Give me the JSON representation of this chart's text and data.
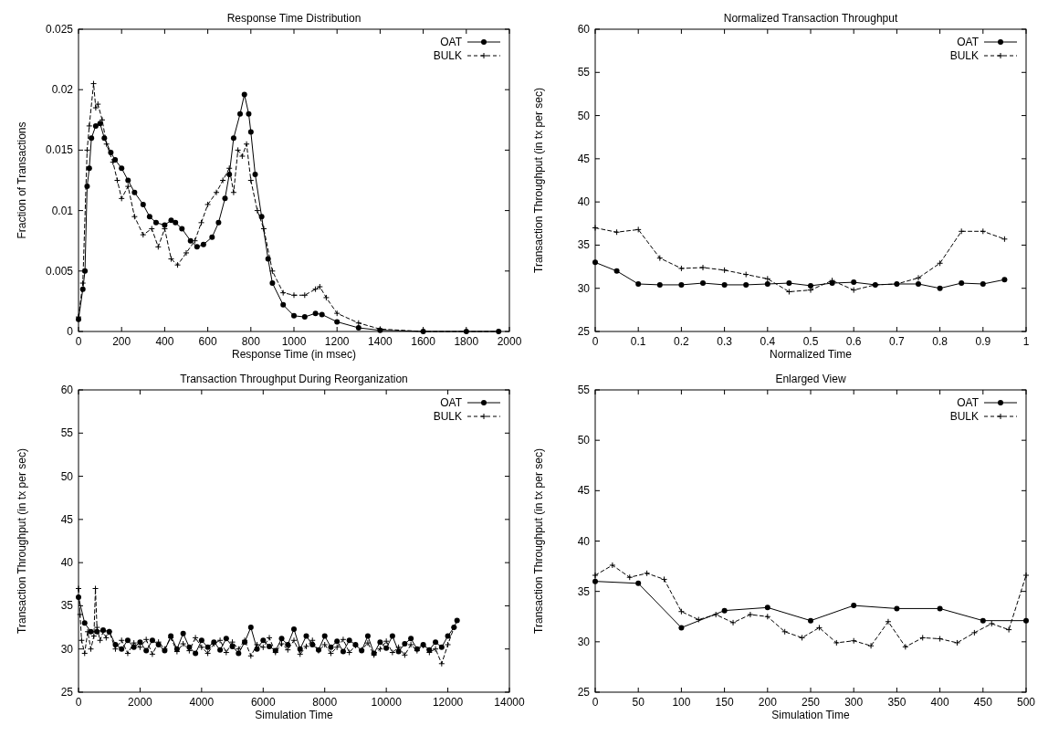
{
  "chart_data": [
    {
      "type": "line",
      "title": "Response Time Distribution",
      "xlabel": "Response Time (in msec)",
      "ylabel": "Fraction of Transactions",
      "xlim": [
        0,
        2000
      ],
      "xticks": [
        0,
        200,
        400,
        600,
        800,
        1000,
        1200,
        1400,
        1600,
        1800,
        2000
      ],
      "ylim": [
        0,
        0.025
      ],
      "yticks": [
        0,
        0.005,
        0.01,
        0.015,
        0.02,
        0.025
      ],
      "legend": "top right",
      "grid": false,
      "series": [
        {
          "name": "OAT",
          "color": "#000000",
          "marker": "circle",
          "line_style": "solid",
          "x": [
            0,
            20,
            30,
            40,
            50,
            60,
            80,
            100,
            120,
            150,
            170,
            200,
            230,
            260,
            300,
            330,
            360,
            400,
            430,
            450,
            480,
            520,
            550,
            580,
            620,
            650,
            680,
            700,
            720,
            750,
            770,
            790,
            800,
            820,
            850,
            880,
            900,
            950,
            1000,
            1050,
            1100,
            1130,
            1200,
            1300,
            1400,
            1600,
            1800,
            1950
          ],
          "values": [
            0.001,
            0.0035,
            0.005,
            0.012,
            0.0135,
            0.016,
            0.017,
            0.0172,
            0.016,
            0.0148,
            0.0142,
            0.0135,
            0.0125,
            0.0115,
            0.0105,
            0.0095,
            0.009,
            0.0088,
            0.0092,
            0.009,
            0.0085,
            0.0075,
            0.007,
            0.0072,
            0.0078,
            0.009,
            0.011,
            0.013,
            0.016,
            0.018,
            0.0196,
            0.018,
            0.0165,
            0.013,
            0.0095,
            0.006,
            0.004,
            0.0022,
            0.0013,
            0.0012,
            0.0015,
            0.0014,
            0.0008,
            0.0003,
            0.0001,
            0,
            0,
            0
          ]
        },
        {
          "name": "BULK",
          "color": "#000000",
          "marker": "cross",
          "line_style": "dashed",
          "x": [
            0,
            20,
            40,
            50,
            70,
            80,
            90,
            110,
            130,
            160,
            180,
            200,
            230,
            260,
            300,
            340,
            370,
            400,
            430,
            460,
            500,
            540,
            570,
            600,
            640,
            670,
            700,
            720,
            740,
            760,
            780,
            800,
            830,
            860,
            900,
            950,
            1000,
            1050,
            1100,
            1120,
            1150,
            1200,
            1300,
            1400,
            1600,
            1800,
            1950
          ],
          "values": [
            0.0012,
            0.004,
            0.015,
            0.017,
            0.0205,
            0.0185,
            0.0188,
            0.0175,
            0.0155,
            0.014,
            0.0125,
            0.011,
            0.012,
            0.0095,
            0.008,
            0.0085,
            0.007,
            0.0085,
            0.006,
            0.0055,
            0.0065,
            0.0075,
            0.009,
            0.0105,
            0.0115,
            0.0125,
            0.0135,
            0.0115,
            0.015,
            0.0145,
            0.0155,
            0.0125,
            0.01,
            0.0085,
            0.005,
            0.0032,
            0.003,
            0.003,
            0.0035,
            0.0037,
            0.0028,
            0.0015,
            0.0007,
            0.0002,
            0,
            0,
            0
          ]
        }
      ]
    },
    {
      "type": "line",
      "title": "Normalized Transaction Throughput",
      "xlabel": "Normalized Time",
      "ylabel": "Transaction Throughput (in tx per sec)",
      "xlim": [
        0,
        1
      ],
      "xticks": [
        0,
        0.1,
        0.2,
        0.3,
        0.4,
        0.5,
        0.6,
        0.7,
        0.8,
        0.9,
        1
      ],
      "ylim": [
        25,
        60
      ],
      "yticks": [
        25,
        30,
        35,
        40,
        45,
        50,
        55,
        60
      ],
      "legend": "top right",
      "grid": false,
      "series": [
        {
          "name": "OAT",
          "color": "#000000",
          "marker": "circle",
          "line_style": "solid",
          "x": [
            0,
            0.05,
            0.1,
            0.15,
            0.2,
            0.25,
            0.3,
            0.35,
            0.4,
            0.45,
            0.5,
            0.55,
            0.6,
            0.65,
            0.7,
            0.75,
            0.8,
            0.85,
            0.9,
            0.95
          ],
          "values": [
            33,
            32,
            30.5,
            30.4,
            30.4,
            30.6,
            30.4,
            30.4,
            30.5,
            30.6,
            30.3,
            30.6,
            30.7,
            30.4,
            30.5,
            30.5,
            30,
            30.6,
            30.5,
            31
          ]
        },
        {
          "name": "BULK",
          "color": "#000000",
          "marker": "cross",
          "line_style": "dashed",
          "x": [
            0,
            0.05,
            0.1,
            0.15,
            0.2,
            0.25,
            0.3,
            0.35,
            0.4,
            0.45,
            0.5,
            0.55,
            0.6,
            0.65,
            0.7,
            0.75,
            0.8,
            0.85,
            0.9,
            0.95
          ],
          "values": [
            37,
            36.5,
            36.8,
            33.5,
            32.3,
            32.4,
            32.1,
            31.6,
            31.1,
            29.6,
            29.8,
            30.9,
            29.8,
            30.4,
            30.5,
            31.2,
            32.9,
            36.6,
            36.6,
            35.7
          ]
        }
      ]
    },
    {
      "type": "line",
      "title": "Transaction Throughput During Reorganization",
      "xlabel": "Simulation Time",
      "ylabel": "Transaction Throughput (in tx per sec)",
      "xlim": [
        0,
        14000
      ],
      "xticks": [
        0,
        2000,
        4000,
        6000,
        8000,
        10000,
        12000,
        14000
      ],
      "ylim": [
        25,
        60
      ],
      "yticks": [
        25,
        30,
        35,
        40,
        45,
        50,
        55,
        60
      ],
      "legend": "top right",
      "grid": false,
      "series": [
        {
          "name": "OAT",
          "color": "#000000",
          "marker": "circle",
          "line_style": "solid",
          "x": [
            0,
            200,
            400,
            600,
            800,
            1000,
            1200,
            1400,
            1600,
            1800,
            2000,
            2200,
            2400,
            2600,
            2800,
            3000,
            3200,
            3400,
            3600,
            3800,
            4000,
            4200,
            4400,
            4600,
            4800,
            5000,
            5200,
            5400,
            5600,
            5800,
            6000,
            6200,
            6400,
            6600,
            6800,
            7000,
            7200,
            7400,
            7600,
            7800,
            8000,
            8200,
            8400,
            8600,
            8800,
            9000,
            9200,
            9400,
            9600,
            9800,
            10000,
            10200,
            10400,
            10600,
            10800,
            11000,
            11200,
            11400,
            11600,
            11800,
            12000,
            12200,
            12300
          ],
          "values": [
            36,
            33,
            32,
            32,
            32.2,
            32,
            30.5,
            30,
            31,
            30.2,
            30.8,
            29.8,
            31,
            30.5,
            29.8,
            31.5,
            30,
            31.8,
            30.2,
            29.5,
            31,
            30.2,
            30.8,
            29.9,
            31.2,
            30.3,
            29.5,
            30.8,
            32.5,
            30,
            31,
            30.3,
            29.8,
            31.2,
            30.5,
            32.3,
            30,
            31.5,
            30.5,
            29.9,
            31.5,
            30.2,
            30.9,
            29.7,
            31,
            30.5,
            29.8,
            31.5,
            29.5,
            30.8,
            30.1,
            31.5,
            29.7,
            30.6,
            31.2,
            30,
            30.5,
            29.9,
            30.8,
            30.2,
            31.5,
            32.5,
            33.3
          ]
        },
        {
          "name": "BULK",
          "color": "#000000",
          "marker": "cross",
          "line_style": "dashed",
          "x": [
            0,
            50,
            100,
            200,
            300,
            400,
            500,
            550,
            600,
            700,
            800,
            900,
            1000,
            1200,
            1400,
            1600,
            1800,
            2000,
            2200,
            2400,
            2600,
            2800,
            3000,
            3200,
            3400,
            3600,
            3800,
            4000,
            4200,
            4400,
            4600,
            4800,
            5000,
            5200,
            5400,
            5600,
            5800,
            6000,
            6200,
            6400,
            6600,
            6800,
            7000,
            7200,
            7400,
            7600,
            7800,
            8000,
            8200,
            8400,
            8600,
            8800,
            9000,
            9200,
            9400,
            9600,
            9800,
            10000,
            10200,
            10400,
            10600,
            10800,
            11000,
            11200,
            11400,
            11600,
            11800,
            12000,
            12200
          ],
          "values": [
            37,
            34,
            31,
            29.5,
            32,
            30,
            31.5,
            37,
            32.5,
            31,
            32,
            31.3,
            32,
            30,
            31,
            29.5,
            30.7,
            30.2,
            31.1,
            29.4,
            30.8,
            30,
            31.3,
            29.7,
            30.6,
            29.8,
            31.3,
            30.2,
            29.5,
            30.6,
            31,
            29.6,
            30.8,
            30,
            31,
            29.2,
            30.5,
            30.2,
            31.3,
            29.6,
            30.6,
            29.9,
            31,
            29.4,
            30.3,
            31,
            29.8,
            30.5,
            29.5,
            30.2,
            31.1,
            29.6,
            30.4,
            29.9,
            30.7,
            29.3,
            30,
            30.9,
            29.6,
            30.2,
            29.3,
            30.5,
            29.8,
            30.4,
            29.6,
            30,
            28.3,
            30.5,
            32.5
          ]
        }
      ]
    },
    {
      "type": "line",
      "title": "Enlarged View",
      "xlabel": "Simulation Time",
      "ylabel": "Transaction Throughput (in tx per sec)",
      "xlim": [
        0,
        500
      ],
      "xticks": [
        0,
        50,
        100,
        150,
        200,
        250,
        300,
        350,
        400,
        450,
        500
      ],
      "ylim": [
        25,
        55
      ],
      "yticks": [
        25,
        30,
        35,
        40,
        45,
        50,
        55
      ],
      "legend": "top right",
      "grid": false,
      "series": [
        {
          "name": "OAT",
          "color": "#000000",
          "marker": "circle",
          "line_style": "solid",
          "x": [
            0,
            50,
            100,
            150,
            200,
            250,
            300,
            350,
            400,
            450,
            500
          ],
          "values": [
            36,
            35.8,
            31.4,
            33.1,
            33.4,
            32.1,
            33.6,
            33.3,
            33.3,
            32.1,
            32.1
          ]
        },
        {
          "name": "BULK",
          "color": "#000000",
          "marker": "cross",
          "line_style": "dashed",
          "x": [
            0,
            20,
            40,
            60,
            80,
            100,
            120,
            140,
            160,
            180,
            200,
            220,
            240,
            260,
            280,
            300,
            320,
            340,
            360,
            380,
            400,
            420,
            440,
            460,
            480,
            500
          ],
          "values": [
            36.6,
            37.6,
            36.4,
            36.8,
            36.2,
            33,
            32.2,
            32.7,
            31.9,
            32.7,
            32.5,
            31,
            30.4,
            31.4,
            29.9,
            30.1,
            29.6,
            32,
            29.5,
            30.4,
            30.3,
            29.9,
            30.9,
            31.8,
            31.2,
            36.6
          ]
        }
      ]
    }
  ]
}
